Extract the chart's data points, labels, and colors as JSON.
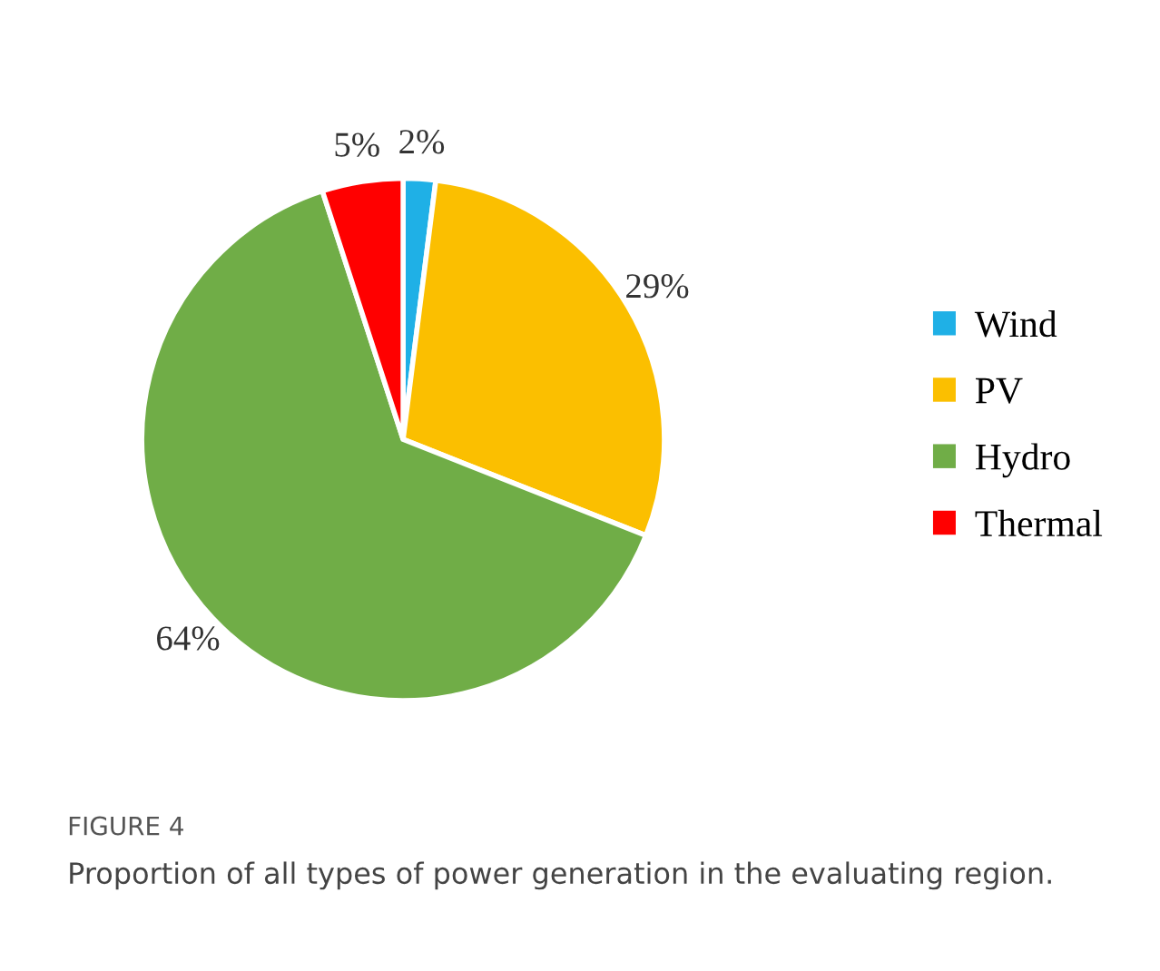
{
  "chart_data": {
    "type": "pie",
    "categories": [
      "Wind",
      "PV",
      "Hydro",
      "Thermal"
    ],
    "values": [
      2,
      29,
      64,
      5
    ],
    "colors": [
      "#1fb0e6",
      "#fbbf00",
      "#70ad47",
      "#ff0000"
    ],
    "value_labels": [
      "2%",
      "29%",
      "64%",
      "5%"
    ],
    "legend": "right",
    "annotations": [
      "FIGURE 4",
      "Proportion of all types of power generation in the evaluating region."
    ]
  }
}
